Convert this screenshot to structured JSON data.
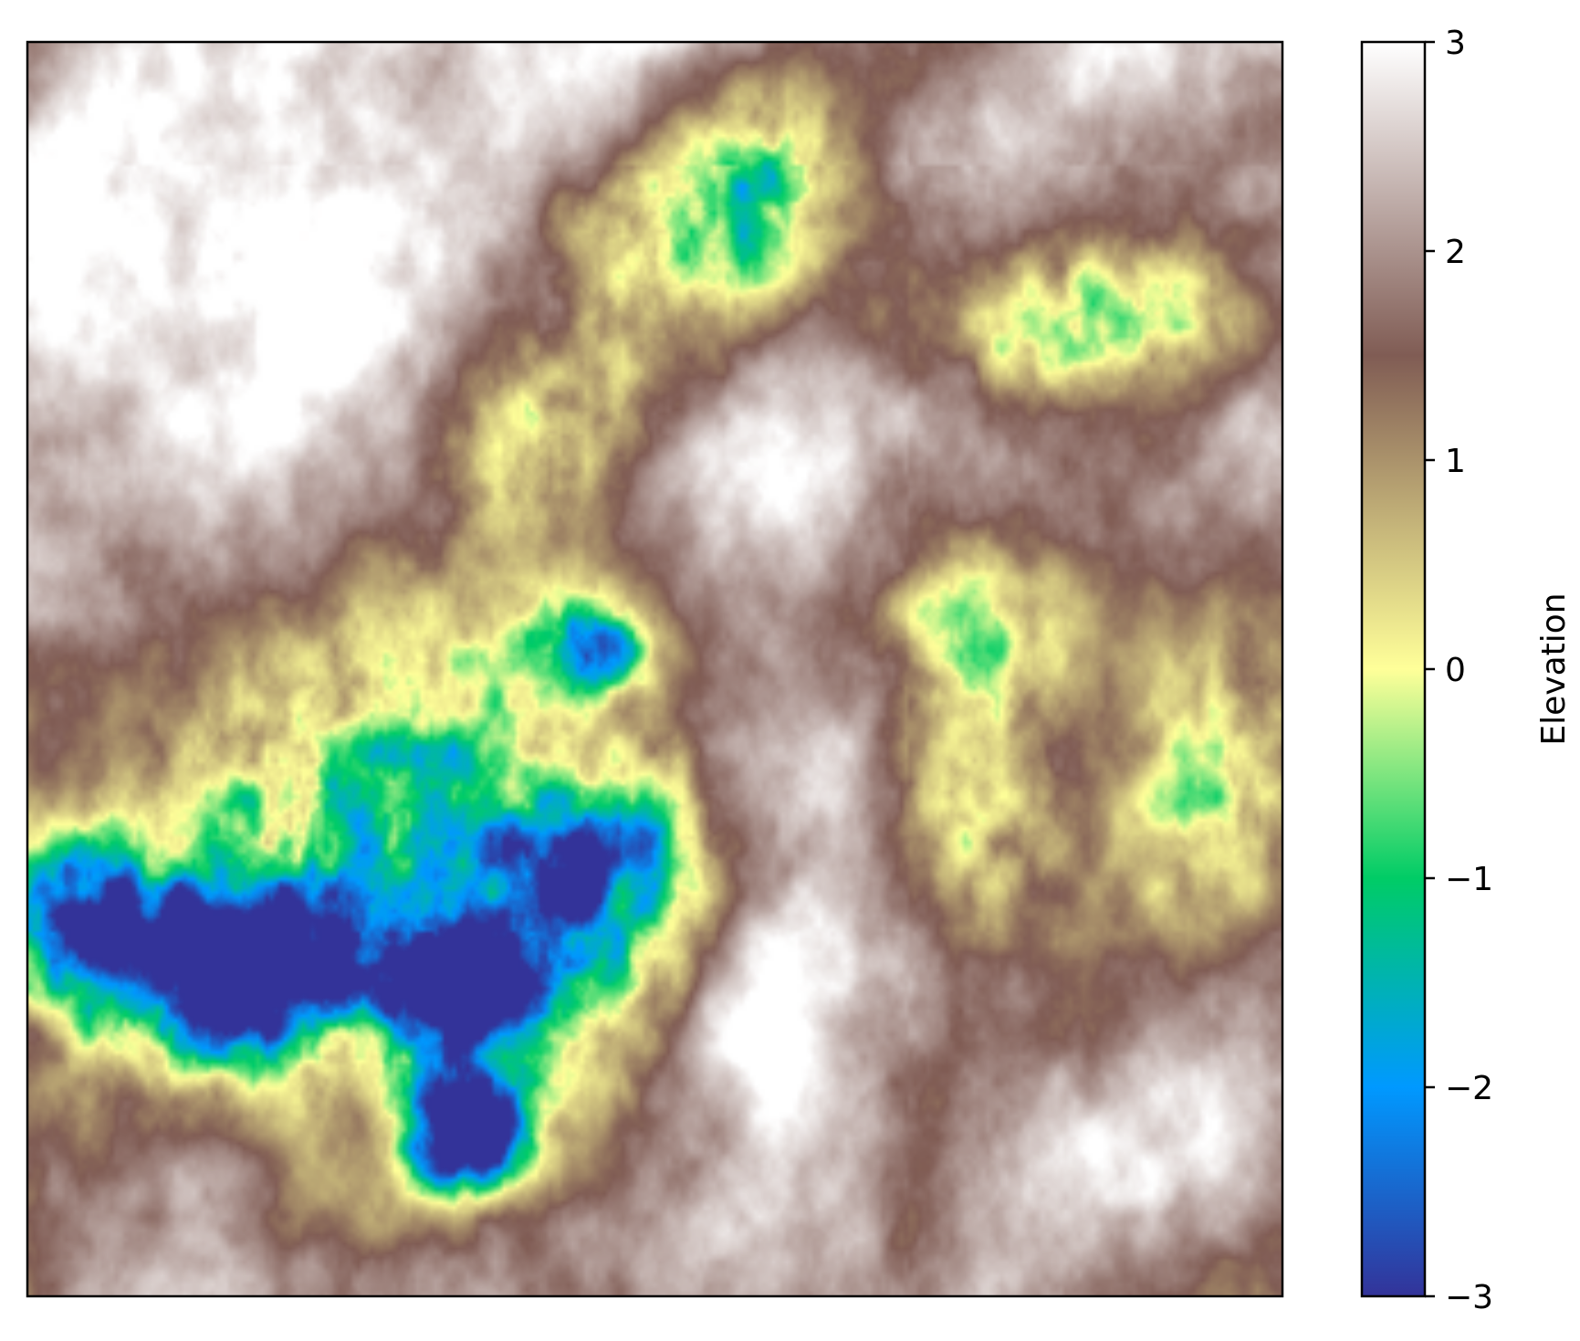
{
  "chart_data": {
    "type": "heatmap",
    "title": "",
    "xlabel": "",
    "ylabel": "",
    "colormap": "terrain",
    "colorbar": {
      "label": "Elevation",
      "vmin": -3,
      "vmax": 3,
      "ticks": [
        -3,
        -2,
        -1,
        0,
        1,
        2,
        3
      ],
      "tick_labels": [
        "−3",
        "−2",
        "−1",
        "0",
        "1",
        "2",
        "3"
      ],
      "colorstops": [
        {
          "value": -3.0,
          "color": "#333399"
        },
        {
          "value": -2.0,
          "color": "#0099ff"
        },
        {
          "value": -1.0,
          "color": "#00cc66"
        },
        {
          "value": 0.0,
          "color": "#ffff99"
        },
        {
          "value": 1.5,
          "color": "#805c54"
        },
        {
          "value": 3.0,
          "color": "#ffffff"
        }
      ]
    },
    "axes": {
      "x_ticks": "none",
      "y_ticks": "none",
      "frame": true
    },
    "field_features": [
      {
        "kind": "trough",
        "u": 0.17,
        "v": 0.26,
        "sx": 0.06,
        "sy": 0.05,
        "amp": -5.2
      },
      {
        "kind": "trough",
        "u": 0.34,
        "v": 0.24,
        "sx": 0.05,
        "sy": 0.04,
        "amp": -5.0
      },
      {
        "kind": "trough",
        "u": 0.35,
        "v": 0.13,
        "sx": 0.035,
        "sy": 0.03,
        "amp": -5.5
      },
      {
        "kind": "trough",
        "u": 0.45,
        "v": 0.52,
        "sx": 0.035,
        "sy": 0.03,
        "amp": -4.5
      },
      {
        "kind": "trough",
        "u": 0.04,
        "v": 0.3,
        "sx": 0.05,
        "sy": 0.05,
        "amp": -4.2
      },
      {
        "kind": "trough",
        "u": 0.27,
        "v": 0.36,
        "sx": 0.16,
        "sy": 0.15,
        "amp": -3.0
      },
      {
        "kind": "trough",
        "u": 0.43,
        "v": 0.34,
        "sx": 0.08,
        "sy": 0.06,
        "amp": -3.2
      },
      {
        "kind": "plateau",
        "u": 0.5,
        "v": 0.85,
        "sx": 0.1,
        "sy": 0.06,
        "amp": -2.2
      },
      {
        "kind": "plateau",
        "u": 0.4,
        "v": 0.7,
        "sx": 0.08,
        "sy": 0.06,
        "amp": -2.0
      },
      {
        "kind": "plateau",
        "u": 0.85,
        "v": 0.78,
        "sx": 0.1,
        "sy": 0.045,
        "amp": -2.3
      },
      {
        "kind": "plateau",
        "u": 0.77,
        "v": 0.52,
        "sx": 0.06,
        "sy": 0.06,
        "amp": -2.0
      },
      {
        "kind": "plateau",
        "u": 0.75,
        "v": 0.38,
        "sx": 0.05,
        "sy": 0.06,
        "amp": -2.0
      },
      {
        "kind": "plateau",
        "u": 0.95,
        "v": 0.4,
        "sx": 0.05,
        "sy": 0.1,
        "amp": -1.6
      },
      {
        "kind": "plateau",
        "u": 0.58,
        "v": 0.9,
        "sx": 0.05,
        "sy": 0.06,
        "amp": -1.8
      },
      {
        "kind": "ridge",
        "u": 0.6,
        "v": 0.25,
        "sx": 0.05,
        "sy": 0.25,
        "amp": 1.0
      },
      {
        "kind": "ridge",
        "u": 0.2,
        "v": 0.78,
        "sx": 0.2,
        "sy": 0.14,
        "amp": 0.8
      },
      {
        "kind": "ridge",
        "u": 0.9,
        "v": 0.15,
        "sx": 0.1,
        "sy": 0.12,
        "amp": 0.6
      }
    ]
  }
}
